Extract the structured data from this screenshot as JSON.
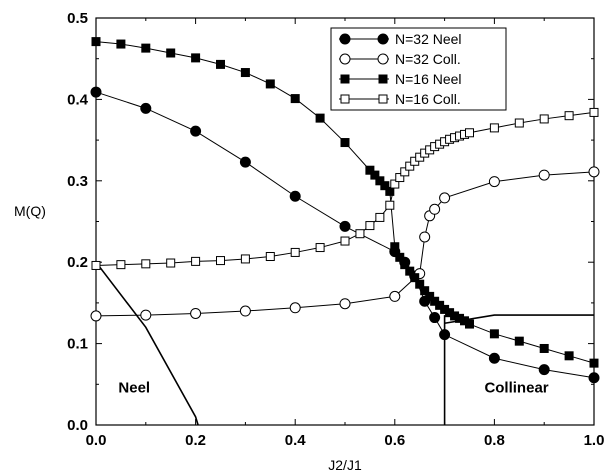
{
  "chart_data": {
    "type": "line",
    "xlabel": "J2/J1",
    "ylabel": "M(Q)",
    "xlim": [
      0.0,
      1.0
    ],
    "ylim": [
      0.0,
      0.5
    ],
    "x_ticks": [
      "0.0",
      "0.2",
      "0.4",
      "0.6",
      "0.8",
      "1.0"
    ],
    "y_ticks": [
      "0.0",
      "0.1",
      "0.2",
      "0.3",
      "0.4",
      "0.5"
    ],
    "legend_position": "top-right",
    "series": [
      {
        "name": "N=32 Neel",
        "marker": "filled-circle",
        "x": [
          0.0,
          0.1,
          0.2,
          0.3,
          0.4,
          0.5,
          0.6,
          0.62,
          0.64,
          0.66,
          0.68,
          0.7,
          0.8,
          0.9,
          1.0
        ],
        "y": [
          0.409,
          0.389,
          0.361,
          0.323,
          0.281,
          0.244,
          0.213,
          0.2,
          0.183,
          0.152,
          0.132,
          0.111,
          0.082,
          0.068,
          0.058
        ]
      },
      {
        "name": "N=32 Coll.",
        "marker": "open-circle",
        "x": [
          0.0,
          0.1,
          0.2,
          0.3,
          0.4,
          0.5,
          0.6,
          0.65,
          0.66,
          0.67,
          0.68,
          0.7,
          0.8,
          0.9,
          1.0
        ],
        "y": [
          0.134,
          0.135,
          0.137,
          0.14,
          0.144,
          0.149,
          0.158,
          0.186,
          0.231,
          0.257,
          0.265,
          0.279,
          0.299,
          0.307,
          0.311
        ]
      },
      {
        "name": "N=16 Neel",
        "marker": "filled-square",
        "x": [
          0.0,
          0.05,
          0.1,
          0.15,
          0.2,
          0.25,
          0.3,
          0.35,
          0.4,
          0.45,
          0.5,
          0.55,
          0.56,
          0.57,
          0.58,
          0.59,
          0.6,
          0.61,
          0.62,
          0.63,
          0.64,
          0.65,
          0.66,
          0.67,
          0.68,
          0.69,
          0.7,
          0.71,
          0.72,
          0.73,
          0.74,
          0.75,
          0.8,
          0.85,
          0.9,
          0.95,
          1.0
        ],
        "y": [
          0.471,
          0.468,
          0.463,
          0.457,
          0.451,
          0.443,
          0.433,
          0.419,
          0.401,
          0.377,
          0.347,
          0.313,
          0.307,
          0.3,
          0.294,
          0.287,
          0.219,
          0.206,
          0.197,
          0.189,
          0.181,
          0.173,
          0.165,
          0.158,
          0.152,
          0.147,
          0.142,
          0.138,
          0.134,
          0.131,
          0.128,
          0.124,
          0.112,
          0.103,
          0.094,
          0.085,
          0.076
        ]
      },
      {
        "name": "N=16 Coll.",
        "marker": "open-square",
        "x": [
          0.0,
          0.05,
          0.1,
          0.15,
          0.2,
          0.25,
          0.3,
          0.35,
          0.4,
          0.45,
          0.5,
          0.53,
          0.55,
          0.57,
          0.59,
          0.6,
          0.61,
          0.62,
          0.63,
          0.64,
          0.65,
          0.66,
          0.67,
          0.68,
          0.69,
          0.7,
          0.71,
          0.72,
          0.73,
          0.74,
          0.75,
          0.8,
          0.85,
          0.9,
          0.95,
          1.0
        ],
        "y": [
          0.196,
          0.197,
          0.198,
          0.199,
          0.201,
          0.202,
          0.204,
          0.207,
          0.212,
          0.218,
          0.226,
          0.235,
          0.245,
          0.255,
          0.27,
          0.296,
          0.304,
          0.311,
          0.318,
          0.324,
          0.329,
          0.334,
          0.338,
          0.342,
          0.345,
          0.348,
          0.351,
          0.353,
          0.355,
          0.357,
          0.359,
          0.365,
          0.371,
          0.376,
          0.38,
          0.384
        ]
      }
    ],
    "phase_boundaries": [
      {
        "x": [
          0.0,
          0.1,
          0.2,
          0.205
        ],
        "y": [
          0.2,
          0.12,
          0.01,
          0.0
        ]
      },
      {
        "x": [
          0.7,
          0.7
        ],
        "y": [
          0.0,
          0.135
        ]
      },
      {
        "x": [
          0.7,
          0.8,
          1.0
        ],
        "y": [
          0.125,
          0.135,
          0.135
        ]
      }
    ],
    "annotations": [
      {
        "text": "Neel",
        "x": 0.045,
        "y": 0.04
      },
      {
        "text": "Collinear",
        "x": 0.78,
        "y": 0.04
      }
    ]
  }
}
